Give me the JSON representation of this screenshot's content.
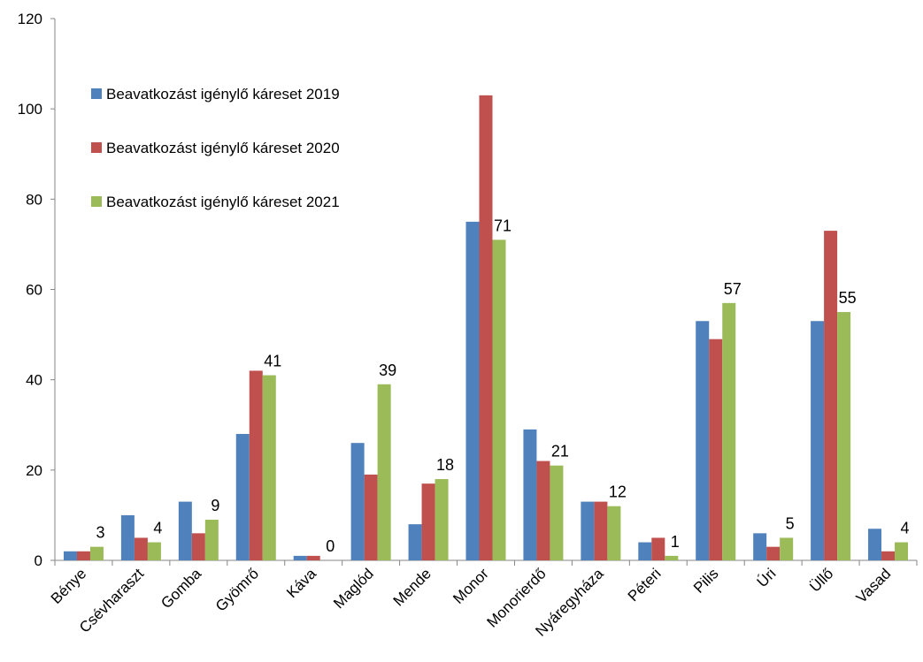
{
  "chart_data": {
    "type": "bar",
    "title": "",
    "xlabel": "",
    "ylabel": "",
    "ylim": [
      0,
      120
    ],
    "yticks": [
      0,
      20,
      40,
      60,
      80,
      100,
      120
    ],
    "grid": false,
    "legend_position": "top-left (inside plot)",
    "categories": [
      "Bénye",
      "Csévharaszt",
      "Gomba",
      "Gyömrő",
      "Káva",
      "Maglód",
      "Mende",
      "Monor",
      "Monorierdő",
      "Nyáregyháza",
      "Péteri",
      "Pilis",
      "Úri",
      "Üllő",
      "Vasad"
    ],
    "series": [
      {
        "name": "Beavatkozást igénylő káreset 2019",
        "color": "#4F81BD",
        "values": [
          2,
          10,
          13,
          28,
          1,
          26,
          8,
          75,
          29,
          13,
          4,
          53,
          6,
          53,
          7
        ]
      },
      {
        "name": "Beavatkozást igénylő káreset 2020",
        "color": "#C0504D",
        "values": [
          2,
          5,
          6,
          42,
          1,
          19,
          17,
          103,
          22,
          13,
          5,
          49,
          3,
          73,
          2
        ]
      },
      {
        "name": "Beavatkozást igénylő káreset 2021",
        "color": "#9BBB59",
        "values": [
          3,
          4,
          9,
          41,
          0,
          39,
          18,
          71,
          21,
          12,
          1,
          57,
          5,
          55,
          4
        ],
        "data_labels": [
          "3",
          "4",
          "9",
          "41",
          "0",
          "39",
          "18",
          "71",
          "21",
          "12",
          "1",
          "57",
          "5",
          "55",
          "4"
        ]
      }
    ]
  }
}
